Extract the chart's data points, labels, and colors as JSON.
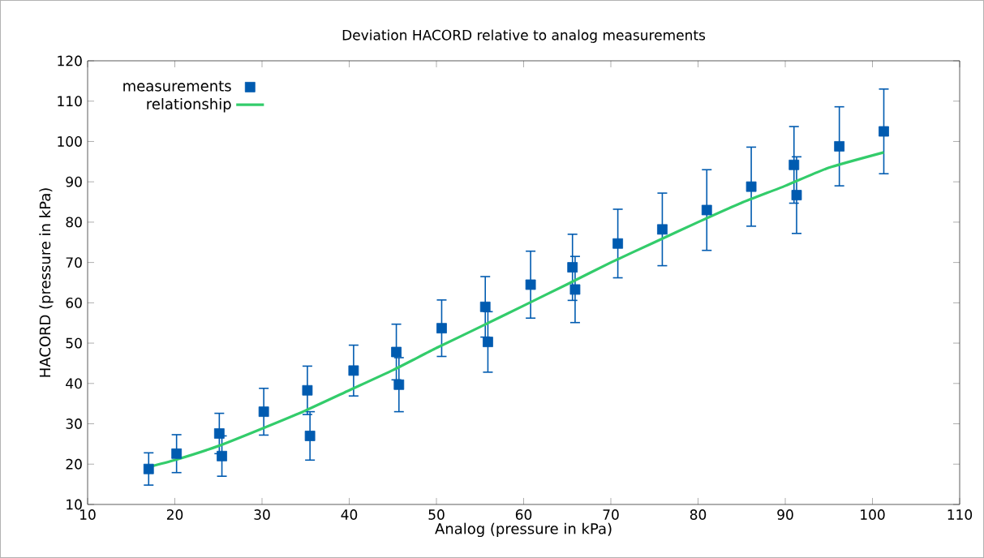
{
  "chart_data": {
    "type": "scatter",
    "title": "Deviation HACORD relative to analog measurements",
    "xlabel": "Analog (pressure in kPa)",
    "ylabel": "HACORD (pressure in kPa)",
    "xlim": [
      10,
      110
    ],
    "xticks": [
      10,
      20,
      30,
      40,
      50,
      60,
      70,
      80,
      90,
      100,
      110
    ],
    "ylim": [
      10,
      120
    ],
    "yticks": [
      10,
      20,
      30,
      40,
      50,
      60,
      70,
      80,
      90,
      100,
      110,
      120
    ],
    "legend": "top left",
    "grid": false,
    "series": [
      {
        "name": "measurements",
        "type": "scatter",
        "marker": "square",
        "color": "#005bb0",
        "x": [
          17,
          20.2,
          25.1,
          25.4,
          30.2,
          35.2,
          35.5,
          40.5,
          45.4,
          45.7,
          50.6,
          55.6,
          55.9,
          60.8,
          65.6,
          65.9,
          70.8,
          75.9,
          81,
          86.1,
          91,
          91.3,
          96.2,
          101.3
        ],
        "values": [
          18.8,
          22.6,
          27.6,
          22,
          33,
          38.3,
          27,
          43.2,
          47.8,
          39.7,
          53.7,
          59,
          50.3,
          64.5,
          68.8,
          63.3,
          74.7,
          78.2,
          83,
          88.8,
          94.2,
          86.7,
          98.8,
          102.5
        ],
        "errors": [
          4,
          4.7,
          5,
          5,
          5.8,
          6,
          6,
          6.3,
          6.9,
          6.7,
          7,
          7.5,
          7.5,
          8.3,
          8.2,
          8.2,
          8.5,
          9,
          10,
          9.8,
          9.5,
          9.5,
          9.8,
          10.5
        ]
      },
      {
        "name": "relationship",
        "type": "line",
        "line_style": "solid",
        "color": "#33cc6b",
        "x": [
          17,
          20,
          25,
          30,
          35,
          40,
          45,
          50,
          55,
          60,
          65,
          70,
          75,
          80,
          85,
          90,
          95,
          101.3
        ],
        "values": [
          19.3,
          21,
          24.5,
          28.8,
          33.3,
          38.3,
          43.3,
          48.8,
          54,
          59.3,
          64.6,
          70,
          75,
          80,
          84.8,
          89,
          93.5,
          97.3
        ]
      }
    ]
  }
}
